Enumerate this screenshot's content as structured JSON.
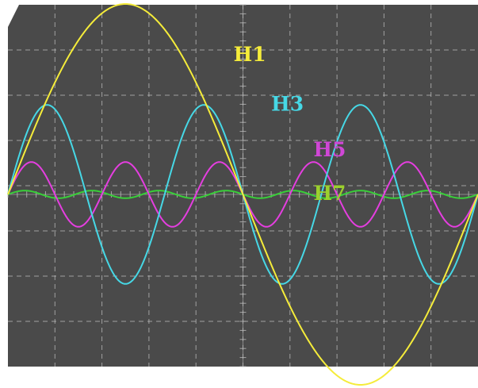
{
  "chart_data": {
    "type": "line",
    "title": "",
    "xlabel": "",
    "ylabel": "",
    "grid": true,
    "grid_divisions": {
      "x": 10,
      "y": 8
    },
    "xlim": [
      0,
      1.0
    ],
    "ylim": [
      -1.0,
      1.0
    ],
    "colors": {
      "background": "#4a4a4a",
      "grid": "#bdbdbd",
      "frame": "#ffffff"
    },
    "series": [
      {
        "name": "H1",
        "harmonic": 1,
        "amplitude": 1.0,
        "color": "#f5ec3a",
        "points": [
          [
            0.0,
            0.0
          ],
          [
            0.05,
            0.309
          ],
          [
            0.1,
            0.588
          ],
          [
            0.15,
            0.809
          ],
          [
            0.2,
            0.951
          ],
          [
            0.25,
            1.0
          ],
          [
            0.3,
            0.951
          ],
          [
            0.35,
            0.809
          ],
          [
            0.4,
            0.588
          ],
          [
            0.45,
            0.309
          ],
          [
            0.5,
            0.0
          ],
          [
            0.55,
            -0.309
          ],
          [
            0.6,
            -0.588
          ],
          [
            0.65,
            -0.809
          ],
          [
            0.7,
            -0.951
          ],
          [
            0.75,
            -1.0
          ],
          [
            0.8,
            -0.951
          ],
          [
            0.85,
            -0.809
          ],
          [
            0.9,
            -0.588
          ],
          [
            0.95,
            -0.309
          ],
          [
            1.0,
            0.0
          ]
        ]
      },
      {
        "name": "H3",
        "harmonic": 3,
        "amplitude": 0.47,
        "color": "#46d8e6",
        "points": [
          [
            0.0,
            0.0
          ],
          [
            1.0,
            0.0
          ]
        ]
      },
      {
        "name": "H5",
        "harmonic": 5,
        "amplitude": 0.17,
        "color": "#e53ee0",
        "points": [
          [
            0.0,
            0.0
          ],
          [
            1.0,
            0.0
          ]
        ]
      },
      {
        "name": "H7",
        "harmonic": 7,
        "amplitude": 0.02,
        "color": "#39cf39",
        "points": [
          [
            0.0,
            0.0
          ],
          [
            1.0,
            0.0
          ]
        ]
      }
    ],
    "labels": [
      {
        "text": "H1",
        "color": "#f5ec3a",
        "anchor": [
          0.48,
          0.7
        ]
      },
      {
        "text": "H3",
        "color": "#46d8e6",
        "anchor": [
          0.56,
          0.44
        ]
      },
      {
        "text": "H5",
        "color": "#d047d6",
        "anchor": [
          0.65,
          0.2
        ]
      },
      {
        "text": "H7",
        "color": "#9bcf2e",
        "anchor": [
          0.65,
          -0.03
        ]
      }
    ]
  }
}
